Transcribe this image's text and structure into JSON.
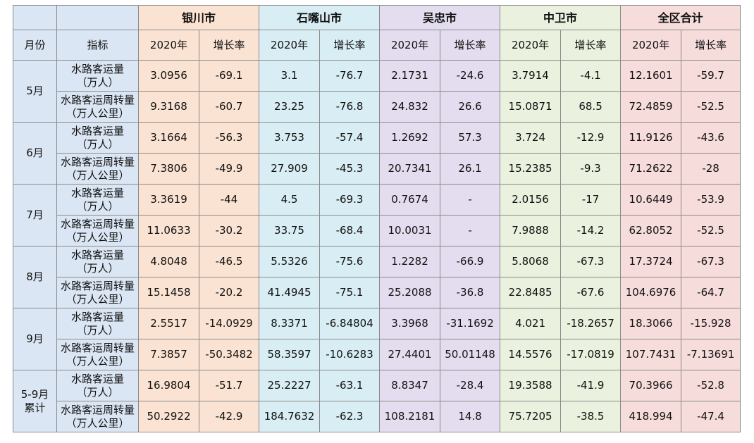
{
  "header": {
    "cities": [
      "银川市",
      "石嘴山市",
      "吴忠市",
      "中卫市",
      "全区合计"
    ],
    "month_label": "月份",
    "indicator_label": "指标",
    "year_label": "2020年",
    "growth_label": "增长率"
  },
  "groups": [
    {
      "month": [
        "5月"
      ],
      "rows": [
        {
          "indicator": [
            "水路客运量",
            "（万人）"
          ],
          "values": [
            "3.0956",
            "-69.1",
            "3.1",
            "-76.7",
            "2.1731",
            "-24.6",
            "3.7914",
            "-4.1",
            "12.1601",
            "-59.7"
          ]
        },
        {
          "indicator": [
            "水路客运周转量",
            "（万人公里）"
          ],
          "values": [
            "9.3168",
            "-60.7",
            "23.25",
            "-76.8",
            "24.832",
            "26.6",
            "15.0871",
            "68.5",
            "72.4859",
            "-52.5"
          ]
        }
      ]
    },
    {
      "month": [
        "6月"
      ],
      "rows": [
        {
          "indicator": [
            "水路客运量",
            "（万人）"
          ],
          "values": [
            "3.1664",
            "-56.3",
            "3.753",
            "-57.4",
            "1.2692",
            "57.3",
            "3.724",
            "-12.9",
            "11.9126",
            "-43.6"
          ]
        },
        {
          "indicator": [
            "水路客运周转量",
            "（万人公里）"
          ],
          "values": [
            "7.3806",
            "-49.9",
            "27.909",
            "-45.3",
            "20.7341",
            "26.1",
            "15.2385",
            "-9.3",
            "71.2622",
            "-28"
          ]
        }
      ]
    },
    {
      "month": [
        "7月"
      ],
      "rows": [
        {
          "indicator": [
            "水路客运量",
            "（万人）"
          ],
          "values": [
            "3.3619",
            "-44",
            "4.5",
            "-69.3",
            "0.7674",
            "-",
            "2.0156",
            "-17",
            "10.6449",
            "-53.9"
          ]
        },
        {
          "indicator": [
            "水路客运周转量",
            "（万人公里）"
          ],
          "values": [
            "11.0633",
            "-30.2",
            "33.75",
            "-68.4",
            "10.0031",
            "-",
            "7.9888",
            "-14.2",
            "62.8052",
            "-52.5"
          ]
        }
      ]
    },
    {
      "month": [
        "8月"
      ],
      "rows": [
        {
          "indicator": [
            "水路客运量",
            "（万人）"
          ],
          "values": [
            "4.8048",
            "-46.5",
            "5.5326",
            "-75.6",
            "1.2282",
            "-66.9",
            "5.8068",
            "-67.3",
            "17.3724",
            "-67.3"
          ]
        },
        {
          "indicator": [
            "水路客运周转量",
            "（万人公里）"
          ],
          "values": [
            "15.1458",
            "-20.2",
            "41.4945",
            "-75.1",
            "25.2088",
            "-36.8",
            "22.8485",
            "-67.6",
            "104.6976",
            "-64.7"
          ]
        }
      ]
    },
    {
      "month": [
        "9月"
      ],
      "rows": [
        {
          "indicator": [
            "水路客运量",
            "（万人）"
          ],
          "values": [
            "2.5517",
            "-14.0929",
            "8.3371",
            "-6.84804",
            "3.3968",
            "-31.1692",
            "4.021",
            "-18.2657",
            "18.3066",
            "-15.928"
          ]
        },
        {
          "indicator": [
            "水路客运周转量",
            "（万人公里）"
          ],
          "values": [
            "7.3857",
            "-50.3482",
            "58.3597",
            "-10.6283",
            "27.4401",
            "50.01148",
            "14.5576",
            "-17.0819",
            "107.7431",
            "-7.13691"
          ]
        }
      ]
    },
    {
      "month": [
        "5-9月",
        "累计"
      ],
      "rows": [
        {
          "indicator": [
            "水路客运量",
            "（万人）"
          ],
          "values": [
            "16.9804",
            "-51.7",
            "25.2227",
            "-63.1",
            "8.8347",
            "-28.4",
            "19.3588",
            "-41.9",
            "70.3966",
            "-52.8"
          ]
        },
        {
          "indicator": [
            "水路客运周转量",
            "（万人公里）"
          ],
          "values": [
            "50.2922",
            "-42.9",
            "184.7632",
            "-62.3",
            "108.2181",
            "14.8",
            "75.7205",
            "-38.5",
            "418.994",
            "-47.4"
          ]
        }
      ]
    }
  ]
}
